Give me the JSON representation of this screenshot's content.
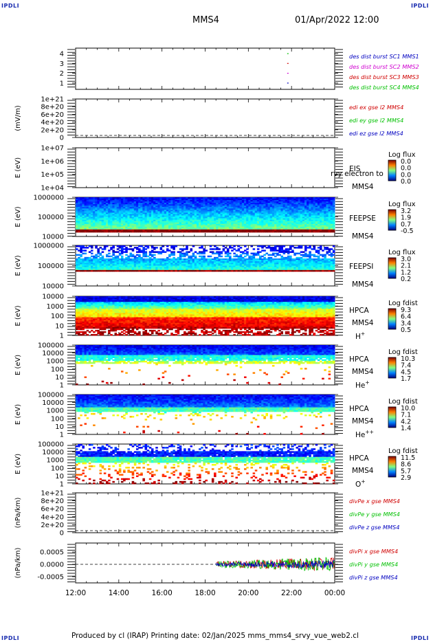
{
  "corners": {
    "tl": "IPDLI",
    "tr": "IPDLI",
    "bl": "IPDLI",
    "br": "IPDLI"
  },
  "header": {
    "spacecraft": "MMS4",
    "datetime": "01/Apr/2022 12:00"
  },
  "footer": {
    "text": "Produced by cl (IRAP)   Printing date: 02/Jan/2025   mms_mms4_srvy_vue_web2.cl"
  },
  "colors": {
    "red": "#d00000",
    "green": "#00c000",
    "blue": "#0000c0",
    "magenta": "#d000d0"
  },
  "chart_data": [
    {
      "id": "burst",
      "type": "scatter",
      "ylabel": "",
      "yticks": [
        "1",
        "2",
        "3",
        "4"
      ],
      "ylim": [
        0.5,
        4.5
      ],
      "series": [
        {
          "name": "des dist burst SC1 MMS1",
          "color": "#0000c0",
          "y": 1,
          "times": [
            "21:50"
          ]
        },
        {
          "name": "des dist burst SC2 MMS2",
          "color": "#d000d0",
          "y": 2,
          "times": [
            "21:50"
          ]
        },
        {
          "name": "des dist burst SC3 MMS3",
          "color": "#d00000",
          "y": 3,
          "times": [
            "21:50"
          ]
        },
        {
          "name": "des dist burst SC4 MMS4",
          "color": "#00c000",
          "y": 4,
          "times": [
            "21:50"
          ]
        }
      ]
    },
    {
      "id": "edi",
      "type": "line",
      "ylabel": "(mV/m)",
      "yticks": [
        "0",
        "2e+20",
        "4e+20",
        "6e+20",
        "8e+20",
        "1e+21"
      ],
      "ylim": [
        0,
        1.05e+21
      ],
      "series": [
        {
          "name": "edi ex gse l2 MMS4",
          "color": "#d00000"
        },
        {
          "name": "edi ey gse l2 MMS4",
          "color": "#00c000"
        },
        {
          "name": "edi ez gse l2 MMS4",
          "color": "#0000c0"
        }
      ]
    },
    {
      "id": "eis",
      "type": "heatmap",
      "ylabel": "E (eV)",
      "scale": "log",
      "yticks": [
        "1e+04",
        "1e+05",
        "1e+06",
        "1e+07"
      ],
      "labels": [
        "EIS",
        "MMS4"
      ],
      "overlay": "rvy electron to",
      "cbar_title": "Log flux",
      "cbar_ticks": [
        "0.0",
        "0.0",
        "0.0",
        "0.0"
      ]
    },
    {
      "id": "feepse",
      "type": "heatmap",
      "ylabel": "E (eV)",
      "scale": "log",
      "yticks": [
        "10000",
        "100000",
        "1000000"
      ],
      "labels": [
        "FEEPSE",
        "MMS4"
      ],
      "cbar_title": "Log flux",
      "cbar_ticks": [
        "3.2",
        "1.9",
        "0.7",
        "-0.5"
      ]
    },
    {
      "id": "feepsi",
      "type": "heatmap",
      "ylabel": "E (eV)",
      "scale": "log",
      "yticks": [
        "10000",
        "100000",
        "1000000"
      ],
      "labels": [
        "FEEPSI",
        "MMS4"
      ],
      "cbar_title": "Log flux",
      "cbar_ticks": [
        "3.0",
        "2.1",
        "1.2",
        "0.2"
      ]
    },
    {
      "id": "hpca_h",
      "type": "heatmap",
      "ylabel": "E (eV)",
      "scale": "log",
      "yticks": [
        "1",
        "10",
        "100",
        "1000",
        "10000"
      ],
      "labels": [
        "HPCA",
        "MMS4"
      ],
      "species": "H",
      "charge": "+",
      "cbar_title": "Log fdist",
      "cbar_ticks": [
        "9.3",
        "6.4",
        "3.4",
        "0.5"
      ]
    },
    {
      "id": "hpca_he",
      "type": "heatmap",
      "ylabel": "E (eV)",
      "scale": "log",
      "yticks": [
        "1",
        "10",
        "100",
        "1000",
        "10000",
        "100000"
      ],
      "labels": [
        "HPCA",
        "MMS4"
      ],
      "species": "He",
      "charge": "+",
      "cbar_title": "Log fdist",
      "cbar_ticks": [
        "10.3",
        "7.4",
        "4.5",
        "1.7"
      ]
    },
    {
      "id": "hpca_hepp",
      "type": "heatmap",
      "ylabel": "E (eV)",
      "scale": "log",
      "yticks": [
        "1",
        "10",
        "100",
        "1000",
        "10000",
        "100000"
      ],
      "labels": [
        "HPCA",
        "MMS4"
      ],
      "species": "He",
      "charge": "++",
      "cbar_title": "Log fdist",
      "cbar_ticks": [
        "10.0",
        "7.1",
        "4.2",
        "1.4"
      ]
    },
    {
      "id": "hpca_o",
      "type": "heatmap",
      "ylabel": "E (eV)",
      "scale": "log",
      "yticks": [
        "1",
        "10",
        "100",
        "1000",
        "10000",
        "100000"
      ],
      "labels": [
        "HPCA",
        "MMS4"
      ],
      "species": "O",
      "charge": "+",
      "cbar_title": "Log fdist",
      "cbar_ticks": [
        "11.5",
        "8.6",
        "5.7",
        "2.9"
      ]
    },
    {
      "id": "divpe",
      "type": "line",
      "ylabel": "(nPa/km)",
      "yticks": [
        "0",
        "2e+20",
        "4e+20",
        "6e+20",
        "8e+20",
        "1e+21"
      ],
      "ylim": [
        0,
        1.05e+21
      ],
      "series": [
        {
          "name": "divPe x gse MMS4",
          "color": "#d00000"
        },
        {
          "name": "divPe y gse MMS4",
          "color": "#00c000"
        },
        {
          "name": "divPe z gse MMS4",
          "color": "#0000c0"
        }
      ]
    },
    {
      "id": "divpi",
      "type": "line",
      "ylabel": "(nPa/km)",
      "yticks": [
        "-0.0005",
        "0.0000",
        "0.0005"
      ],
      "ylim": [
        -0.0008,
        0.0008
      ],
      "series": [
        {
          "name": "divPi x gse MMS4",
          "color": "#d00000"
        },
        {
          "name": "divPi y gse MMS4",
          "color": "#00c000"
        },
        {
          "name": "divPi z gse MMS4",
          "color": "#0000c0"
        }
      ],
      "data_start": "18:30",
      "data_end": "24:00"
    }
  ],
  "xaxis": {
    "ticks": [
      "12:00",
      "14:00",
      "16:00",
      "18:00",
      "20:00",
      "22:00",
      "00:00"
    ],
    "range_hours": [
      12,
      24
    ]
  }
}
